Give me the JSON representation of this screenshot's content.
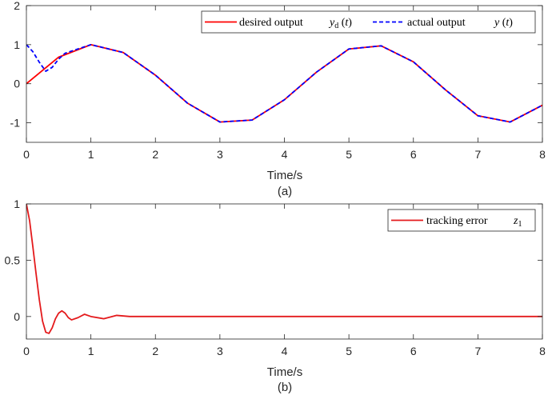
{
  "colors": {
    "desired": "#ff0000",
    "actual": "#0000ff",
    "error": "#e41a1c",
    "axis": "#262626"
  },
  "chart_data": [
    {
      "type": "line",
      "xlabel": "Time/s",
      "caption": "(a)",
      "xlim": [
        0,
        8
      ],
      "ylim": [
        -1.5,
        2
      ],
      "xticks": [
        "0",
        "1",
        "2",
        "3",
        "4",
        "5",
        "6",
        "7",
        "8"
      ],
      "yticks": [
        "-1",
        "0",
        "1",
        "2"
      ],
      "legend_position": "top-right",
      "series": [
        {
          "name": "desired output",
          "math": "y_d(t)",
          "style": "solid",
          "color": "#ff0000",
          "x": [
            0,
            0.5,
            1,
            1.5,
            2,
            2.5,
            3,
            3.5,
            4,
            4.5,
            5,
            5.5,
            6,
            6.5,
            7,
            7.5,
            8
          ],
          "y": [
            0,
            0.68,
            1,
            0.8,
            0.22,
            -0.5,
            -0.98,
            -0.93,
            -0.41,
            0.3,
            0.89,
            0.97,
            0.56,
            -0.16,
            -0.82,
            -0.98,
            -0.55
          ]
        },
        {
          "name": "actual output",
          "math": "y(t)",
          "style": "dashed",
          "color": "#0000ff",
          "x": [
            0,
            0.1,
            0.2,
            0.3,
            0.4,
            0.5,
            0.6,
            1,
            1.5,
            2,
            2.5,
            3,
            3.5,
            4,
            4.5,
            5,
            5.5,
            6,
            6.5,
            7,
            7.5,
            8
          ],
          "y": [
            1,
            0.82,
            0.55,
            0.32,
            0.42,
            0.63,
            0.78,
            1,
            0.8,
            0.22,
            -0.5,
            -0.98,
            -0.93,
            -0.41,
            0.3,
            0.89,
            0.97,
            0.56,
            -0.16,
            -0.82,
            -0.98,
            -0.55
          ]
        }
      ]
    },
    {
      "type": "line",
      "xlabel": "Time/s",
      "caption": "(b)",
      "xlim": [
        0,
        8
      ],
      "ylim": [
        -0.2,
        1
      ],
      "xticks": [
        "0",
        "1",
        "2",
        "3",
        "4",
        "5",
        "6",
        "7",
        "8"
      ],
      "yticks": [
        "0",
        "0.5",
        "1"
      ],
      "legend_position": "top-right",
      "series": [
        {
          "name": "tracking error",
          "math": "z_1",
          "style": "solid",
          "color": "#e41a1c",
          "x": [
            0,
            0.05,
            0.1,
            0.15,
            0.2,
            0.25,
            0.3,
            0.35,
            0.4,
            0.45,
            0.5,
            0.55,
            0.6,
            0.65,
            0.7,
            0.8,
            0.9,
            1.0,
            1.2,
            1.4,
            1.6,
            2,
            3,
            4,
            5,
            6,
            7,
            8
          ],
          "y": [
            1,
            0.85,
            0.62,
            0.38,
            0.15,
            -0.04,
            -0.14,
            -0.15,
            -0.1,
            -0.02,
            0.03,
            0.05,
            0.03,
            -0.01,
            -0.03,
            -0.01,
            0.02,
            0.0,
            -0.02,
            0.01,
            0.0,
            0.0,
            0.0,
            0.0,
            0.0,
            0.0,
            0.0,
            0.0
          ]
        }
      ]
    }
  ]
}
